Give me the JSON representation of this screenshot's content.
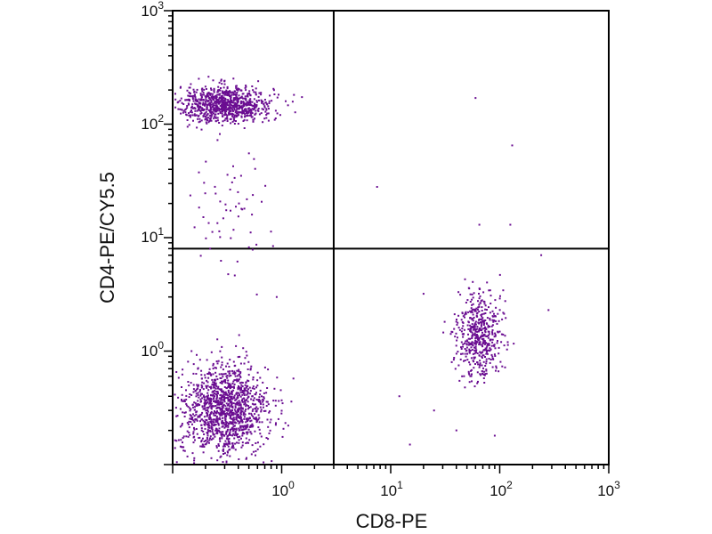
{
  "chart_data": {
    "type": "scatter",
    "xlabel": "CD8-PE",
    "ylabel": "CD4-PE/CY5.5",
    "x_scale": "log",
    "y_scale": "log",
    "xlim": [
      0.1,
      1000
    ],
    "ylim": [
      0.1,
      1000
    ],
    "x_tick_labels": [
      {
        "value": 1,
        "base": "10",
        "exp": "0"
      },
      {
        "value": 10,
        "base": "10",
        "exp": "1"
      },
      {
        "value": 100,
        "base": "10",
        "exp": "2"
      },
      {
        "value": 1000,
        "base": "10",
        "exp": "3"
      }
    ],
    "y_tick_labels": [
      {
        "value": 1,
        "base": "10",
        "exp": "0"
      },
      {
        "value": 10,
        "base": "10",
        "exp": "1"
      },
      {
        "value": 100,
        "base": "10",
        "exp": "2"
      },
      {
        "value": 1000,
        "base": "10",
        "exp": "3"
      }
    ],
    "quadrant_gates": {
      "x": 3.0,
      "y": 8.0
    },
    "point_color": "#6a0d91",
    "populations": [
      {
        "center": [
          0.3,
          150
        ],
        "spread_log": [
          0.22,
          0.08
        ],
        "count": 900
      },
      {
        "center": [
          0.3,
          0.3
        ],
        "spread_log": [
          0.2,
          0.2
        ],
        "count": 1300
      },
      {
        "center": [
          65,
          1.4
        ],
        "spread_log": [
          0.1,
          0.19
        ],
        "count": 520
      },
      {
        "center": [
          0.32,
          15
        ],
        "spread_log": [
          0.2,
          0.4
        ],
        "count": 60
      }
    ],
    "sparse_points": [
      [
        60,
        170
      ],
      [
        130,
        65
      ],
      [
        7.5,
        28
      ],
      [
        65,
        13
      ],
      [
        125,
        13
      ],
      [
        240,
        7
      ],
      [
        280,
        2.3
      ],
      [
        0.9,
        3
      ],
      [
        20,
        3.2
      ],
      [
        12,
        0.4
      ],
      [
        25,
        0.3
      ],
      [
        40,
        0.2
      ],
      [
        15,
        0.15
      ],
      [
        90,
        0.18
      ]
    ]
  }
}
